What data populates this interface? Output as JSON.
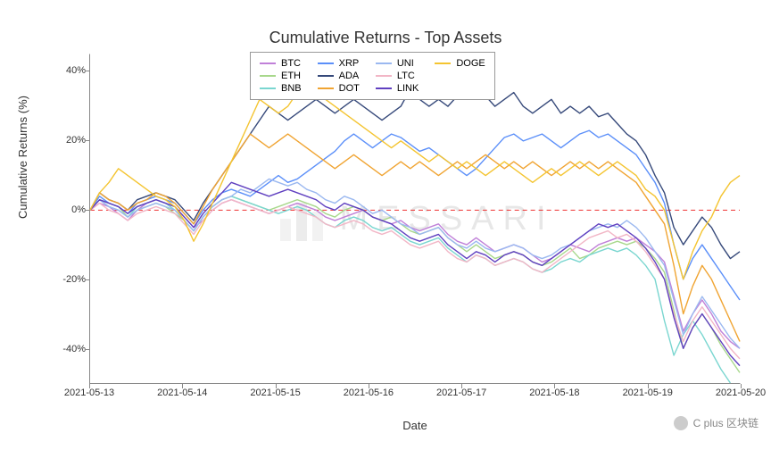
{
  "title": "Cumulative Returns - Top Assets",
  "ylabel": "Cumulative Returns (%)",
  "xlabel": "Date",
  "title_fontsize": 18,
  "label_fontsize": 13,
  "tick_fontsize": 11,
  "background_color": "#ffffff",
  "plot_bg_color": "#ffffff",
  "axis_color": "#888888",
  "grid_on": false,
  "zero_line": {
    "y": 0,
    "color": "#ee3333",
    "dash": "5,4",
    "width": 1
  },
  "watermark": {
    "text": "MESSARI",
    "color": "#666666",
    "opacity": 0.15,
    "fontsize": 38,
    "letter_spacing": 10,
    "logo_bars": [
      "#aaaaaa",
      "#888888",
      "#aaaaaa"
    ]
  },
  "footer": {
    "icon": "wechat",
    "text": "C plus 区块链"
  },
  "ylim": [
    -50,
    45
  ],
  "ytick_step": 20,
  "yticks": [
    -40,
    -20,
    0,
    20,
    40
  ],
  "ytick_labels": [
    "-40%",
    "-20%",
    "0%",
    "20%",
    "40%"
  ],
  "xlim": [
    "2021-05-13",
    "2021-05-20"
  ],
  "xticks": [
    "2021-05-13",
    "2021-05-14",
    "2021-05-15",
    "2021-05-16",
    "2021-05-17",
    "2021-05-18",
    "2021-05-19",
    "2021-05-20"
  ],
  "line_width": 1.4,
  "legend": {
    "position": "top-center",
    "border_color": "#999999",
    "bg_color": "#ffffff",
    "fontsize": 11,
    "columns": 4
  },
  "series": [
    {
      "name": "BTC",
      "color": "#c080d8",
      "data": [
        0,
        2,
        1,
        -1,
        -3,
        0,
        2,
        3,
        2,
        1,
        -2,
        -5,
        -3,
        0,
        2,
        3,
        2,
        1,
        0,
        -1,
        0,
        1,
        2,
        1,
        0,
        -2,
        -3,
        -2,
        -1,
        0,
        -2,
        -3,
        -4,
        -3,
        -5,
        -6,
        -5,
        -4,
        -7,
        -9,
        -10,
        -8,
        -10,
        -12,
        -11,
        -10,
        -11,
        -13,
        -15,
        -14,
        -12,
        -10,
        -11,
        -12,
        -10,
        -9,
        -8,
        -9,
        -8,
        -10,
        -12,
        -15,
        -25,
        -35,
        -30,
        -26,
        -30,
        -35,
        -38,
        -40
      ]
    },
    {
      "name": "ETH",
      "color": "#a8d88c",
      "data": [
        0,
        3,
        2,
        1,
        -2,
        0,
        1,
        2,
        1,
        -1,
        -3,
        -6,
        -2,
        1,
        3,
        4,
        3,
        2,
        1,
        0,
        1,
        2,
        3,
        2,
        1,
        -1,
        -2,
        0,
        1,
        0,
        -2,
        -3,
        -2,
        -4,
        -6,
        -7,
        -6,
        -5,
        -8,
        -10,
        -12,
        -10,
        -12,
        -14,
        -13,
        -12,
        -13,
        -15,
        -16,
        -15,
        -13,
        -11,
        -14,
        -13,
        -11,
        -10,
        -9,
        -10,
        -9,
        -11,
        -14,
        -18,
        -29,
        -40,
        -34,
        -30,
        -34,
        -39,
        -43,
        -47
      ]
    },
    {
      "name": "BNB",
      "color": "#7ad6d0",
      "data": [
        0,
        3,
        1,
        0,
        -2,
        1,
        2,
        3,
        2,
        0,
        -3,
        -6,
        -2,
        1,
        3,
        4,
        3,
        2,
        1,
        0,
        -1,
        0,
        1,
        0,
        -2,
        -4,
        -5,
        -3,
        -2,
        -3,
        -5,
        -6,
        -5,
        -7,
        -9,
        -10,
        -9,
        -8,
        -11,
        -13,
        -15,
        -13,
        -14,
        -16,
        -15,
        -14,
        -15,
        -17,
        -18,
        -17,
        -15,
        -14,
        -15,
        -13,
        -12,
        -11,
        -12,
        -11,
        -13,
        -16,
        -20,
        -32,
        -42,
        -36,
        -32,
        -36,
        -41,
        -46,
        -50
      ]
    },
    {
      "name": "XRP",
      "color": "#5b8ff9",
      "data": [
        0,
        4,
        2,
        1,
        -1,
        2,
        3,
        4,
        3,
        2,
        -1,
        -4,
        0,
        3,
        5,
        6,
        5,
        4,
        6,
        8,
        10,
        8,
        9,
        11,
        13,
        15,
        17,
        20,
        22,
        20,
        18,
        20,
        22,
        21,
        19,
        17,
        18,
        16,
        14,
        12,
        10,
        12,
        15,
        18,
        21,
        22,
        20,
        21,
        22,
        20,
        18,
        20,
        22,
        23,
        21,
        22,
        20,
        18,
        16,
        12,
        8,
        2,
        -10,
        -20,
        -14,
        -10,
        -14,
        -18,
        -22,
        -26
      ]
    },
    {
      "name": "ADA",
      "color": "#36497a",
      "data": [
        0,
        5,
        3,
        2,
        0,
        3,
        4,
        5,
        4,
        3,
        0,
        -3,
        2,
        6,
        10,
        14,
        18,
        22,
        26,
        30,
        28,
        26,
        28,
        30,
        32,
        30,
        28,
        30,
        32,
        30,
        28,
        26,
        28,
        30,
        35,
        32,
        30,
        32,
        30,
        33,
        38,
        36,
        33,
        30,
        32,
        34,
        30,
        28,
        30,
        32,
        28,
        30,
        28,
        30,
        27,
        28,
        25,
        22,
        20,
        16,
        10,
        5,
        -5,
        -10,
        -6,
        -2,
        -5,
        -10,
        -14,
        -12
      ]
    },
    {
      "name": "DOT",
      "color": "#f0a432",
      "data": [
        0,
        5,
        3,
        2,
        0,
        2,
        3,
        5,
        4,
        2,
        -1,
        -4,
        1,
        6,
        10,
        14,
        18,
        22,
        20,
        18,
        20,
        22,
        20,
        18,
        16,
        14,
        12,
        14,
        16,
        14,
        12,
        10,
        12,
        14,
        12,
        14,
        12,
        10,
        12,
        14,
        12,
        14,
        16,
        14,
        12,
        14,
        12,
        14,
        12,
        10,
        12,
        14,
        12,
        14,
        12,
        14,
        12,
        10,
        8,
        4,
        0,
        -4,
        -16,
        -30,
        -22,
        -16,
        -20,
        -26,
        -32,
        -38
      ]
    },
    {
      "name": "UNI",
      "color": "#9bb8f0",
      "data": [
        0,
        3,
        1,
        0,
        -2,
        0,
        1,
        2,
        1,
        0,
        -3,
        -6,
        -2,
        1,
        3,
        4,
        6,
        5,
        7,
        9,
        8,
        7,
        8,
        6,
        5,
        3,
        2,
        4,
        3,
        1,
        -1,
        0,
        -2,
        -4,
        -5,
        -7,
        -6,
        -5,
        -8,
        -10,
        -11,
        -9,
        -11,
        -12,
        -11,
        -10,
        -11,
        -13,
        -14,
        -13,
        -11,
        -10,
        -8,
        -6,
        -5,
        -4,
        -5,
        -3,
        -5,
        -8,
        -12,
        -16,
        -26,
        -36,
        -30,
        -25,
        -29,
        -33,
        -37,
        -40
      ]
    },
    {
      "name": "LTC",
      "color": "#f2b6c6",
      "data": [
        0,
        2,
        0,
        -1,
        -3,
        -1,
        0,
        1,
        0,
        -1,
        -4,
        -7,
        -3,
        0,
        2,
        3,
        2,
        1,
        0,
        -1,
        0,
        1,
        0,
        -1,
        -2,
        -4,
        -5,
        -4,
        -3,
        -4,
        -6,
        -7,
        -6,
        -8,
        -10,
        -11,
        -10,
        -9,
        -12,
        -14,
        -15,
        -13,
        -14,
        -16,
        -15,
        -14,
        -15,
        -17,
        -18,
        -16,
        -14,
        -12,
        -10,
        -8,
        -7,
        -6,
        -8,
        -7,
        -9,
        -12,
        -16,
        -20,
        -30,
        -38,
        -32,
        -28,
        -32,
        -36,
        -40,
        -43
      ]
    },
    {
      "name": "LINK",
      "color": "#6040c0",
      "data": [
        0,
        3,
        2,
        1,
        -1,
        1,
        2,
        3,
        2,
        1,
        -2,
        -5,
        -1,
        2,
        5,
        8,
        7,
        6,
        5,
        4,
        5,
        6,
        5,
        4,
        3,
        1,
        0,
        2,
        1,
        0,
        -2,
        -3,
        -4,
        -6,
        -8,
        -9,
        -8,
        -7,
        -10,
        -12,
        -14,
        -12,
        -13,
        -15,
        -13,
        -12,
        -13,
        -15,
        -16,
        -14,
        -12,
        -10,
        -8,
        -6,
        -4,
        -5,
        -4,
        -6,
        -8,
        -11,
        -15,
        -20,
        -31,
        -40,
        -34,
        -30,
        -34,
        -38,
        -42,
        -45
      ]
    },
    {
      "name": "DOGE",
      "color": "#f4c430",
      "data": [
        0,
        5,
        8,
        12,
        10,
        8,
        6,
        4,
        3,
        1,
        -3,
        -9,
        -4,
        2,
        8,
        14,
        20,
        26,
        32,
        30,
        28,
        30,
        34,
        38,
        36,
        32,
        30,
        28,
        26,
        24,
        22,
        20,
        18,
        20,
        18,
        16,
        14,
        16,
        14,
        12,
        14,
        12,
        10,
        12,
        14,
        12,
        10,
        8,
        10,
        12,
        10,
        12,
        14,
        12,
        10,
        12,
        14,
        12,
        10,
        6,
        4,
        0,
        -10,
        -20,
        -12,
        -6,
        -2,
        4,
        8,
        10
      ]
    }
  ]
}
